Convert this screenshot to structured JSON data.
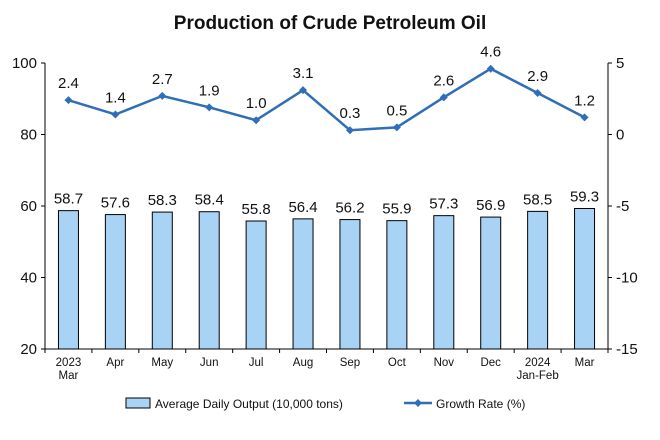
{
  "chart_data": {
    "type": "bar",
    "title": "Production of Crude Petroleum Oil",
    "categories": [
      [
        "2023",
        "Mar"
      ],
      [
        "Apr"
      ],
      [
        "May"
      ],
      [
        "Jun"
      ],
      [
        "Jul"
      ],
      [
        "Aug"
      ],
      [
        "Sep"
      ],
      [
        "Oct"
      ],
      [
        "Nov"
      ],
      [
        "Dec"
      ],
      [
        "2024",
        "Jan-Feb"
      ],
      [
        "Mar"
      ]
    ],
    "series": [
      {
        "name": "Average Daily Output (10,000 tons)",
        "kind": "bar",
        "axis": "left",
        "values": [
          58.7,
          57.6,
          58.3,
          58.4,
          55.8,
          56.4,
          56.2,
          55.9,
          57.3,
          56.9,
          58.5,
          59.3
        ]
      },
      {
        "name": "Growth Rate (%)",
        "kind": "line",
        "axis": "right",
        "values": [
          2.4,
          1.4,
          2.7,
          1.9,
          1.0,
          3.1,
          0.3,
          0.5,
          2.6,
          4.6,
          2.9,
          1.2
        ]
      }
    ],
    "left_axis": {
      "ylim": [
        20,
        100
      ],
      "ticks": [
        20,
        40,
        60,
        80,
        100
      ]
    },
    "right_axis": {
      "ylim": [
        -15,
        5
      ],
      "ticks": [
        5,
        0,
        -5,
        -10,
        -15
      ]
    },
    "grid": false,
    "legend_position": "bottom",
    "colors": {
      "bar_fill": "#a9d3f5",
      "bar_stroke": "#000000",
      "line": "#2f6fb8",
      "marker": "#2f6fb8"
    }
  }
}
